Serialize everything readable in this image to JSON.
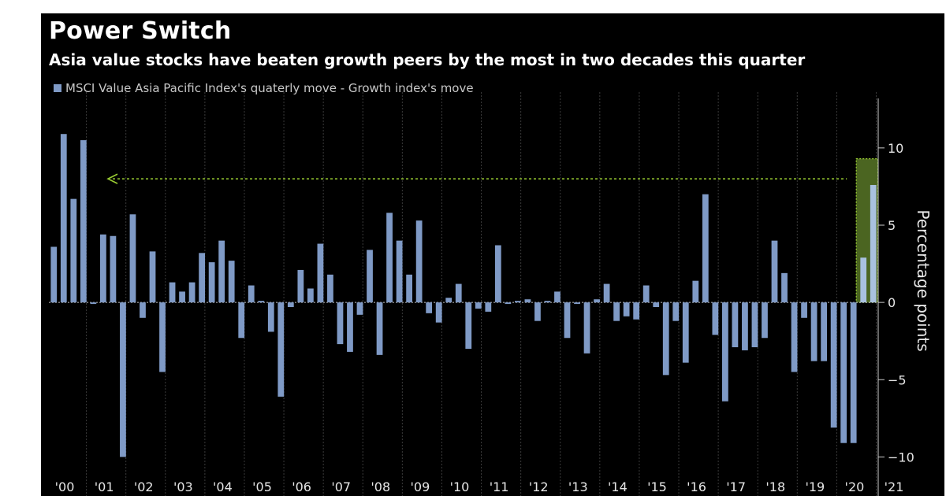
{
  "chart_data": {
    "type": "bar",
    "title": "Power Switch",
    "subtitle": "Asia value stocks have beaten growth peers by the most in two decades this quarter",
    "series": [
      {
        "name": "MSCI Value Asia Pacific Index's quaterly move - Growth index's move",
        "color": "#7f9ac6",
        "values": [
          3.6,
          10.9,
          6.7,
          10.5,
          -0.1,
          4.4,
          4.3,
          -10.0,
          5.7,
          -1.0,
          3.3,
          -4.5,
          1.3,
          0.7,
          1.3,
          3.2,
          2.6,
          4.0,
          2.7,
          -2.3,
          1.1,
          0.1,
          -1.9,
          -6.1,
          -0.3,
          2.1,
          0.9,
          3.8,
          1.8,
          -2.7,
          -3.2,
          -0.8,
          3.4,
          -3.4,
          5.8,
          4.0,
          1.8,
          5.3,
          -0.7,
          -1.3,
          0.3,
          1.2,
          -3.0,
          -0.4,
          -0.6,
          3.7,
          -0.1,
          0.1,
          0.2,
          -1.2,
          0.1,
          0.7,
          -2.3,
          -0.1,
          -3.3,
          0.2,
          1.2,
          -1.2,
          -0.9,
          -1.1,
          1.1,
          -0.3,
          -4.7,
          -1.2,
          -3.9,
          1.4,
          7.0,
          -2.1,
          -6.4,
          -2.9,
          -3.1,
          -2.9,
          -2.3,
          4.0,
          1.9,
          -4.5,
          -1.0,
          -3.8,
          -3.8,
          -8.1,
          -9.1,
          -9.1,
          2.9,
          7.6
        ]
      }
    ],
    "x_ticks": [
      "'00",
      "'01",
      "'02",
      "'03",
      "'04",
      "'05",
      "'06",
      "'07",
      "'08",
      "'09",
      "'10",
      "'11",
      "'12",
      "'13",
      "'14",
      "'15",
      "'16",
      "'17",
      "'18",
      "'19",
      "'20",
      "'21"
    ],
    "ylabel": "Percentage points",
    "ylim": [
      -11,
      13
    ],
    "y_ticks": [
      -10,
      -5,
      0,
      5,
      10
    ],
    "y_axis_side": "right",
    "grid": true,
    "grid_axis": "x",
    "legend_position": "top-left",
    "highlight": {
      "description_color": "#6a8f2a",
      "from_index": 82,
      "to_index": 83,
      "y_range": [
        0,
        9.3
      ]
    },
    "reference_arrow": {
      "y": 8.0,
      "direction": "left",
      "color": "#9acd32"
    },
    "colors": {
      "background": "#000000",
      "bars": "#7f9ac6",
      "highlight_bars": "#a9c1e0",
      "highlight_fill": "#4b6521",
      "highlight_border": "#9acd32",
      "grid": "#3a3a3a",
      "text": "#ffffff"
    }
  }
}
